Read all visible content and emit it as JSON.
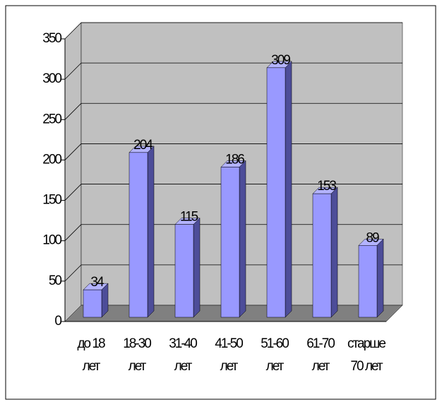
{
  "chart_data": {
    "type": "bar3d",
    "categories": [
      "до 18\nлет",
      "18-30\nлет",
      "31-40\nлет",
      "41-50\nлет",
      "51-60\nлет",
      "61-70\nлет",
      "старше\n70 лет"
    ],
    "values": [
      34,
      204,
      115,
      186,
      309,
      153,
      89
    ],
    "color": "#9999ff",
    "ylim": [
      0,
      350
    ],
    "yticks": [
      0,
      50,
      100,
      150,
      200,
      250,
      300,
      350
    ],
    "grid": true
  }
}
